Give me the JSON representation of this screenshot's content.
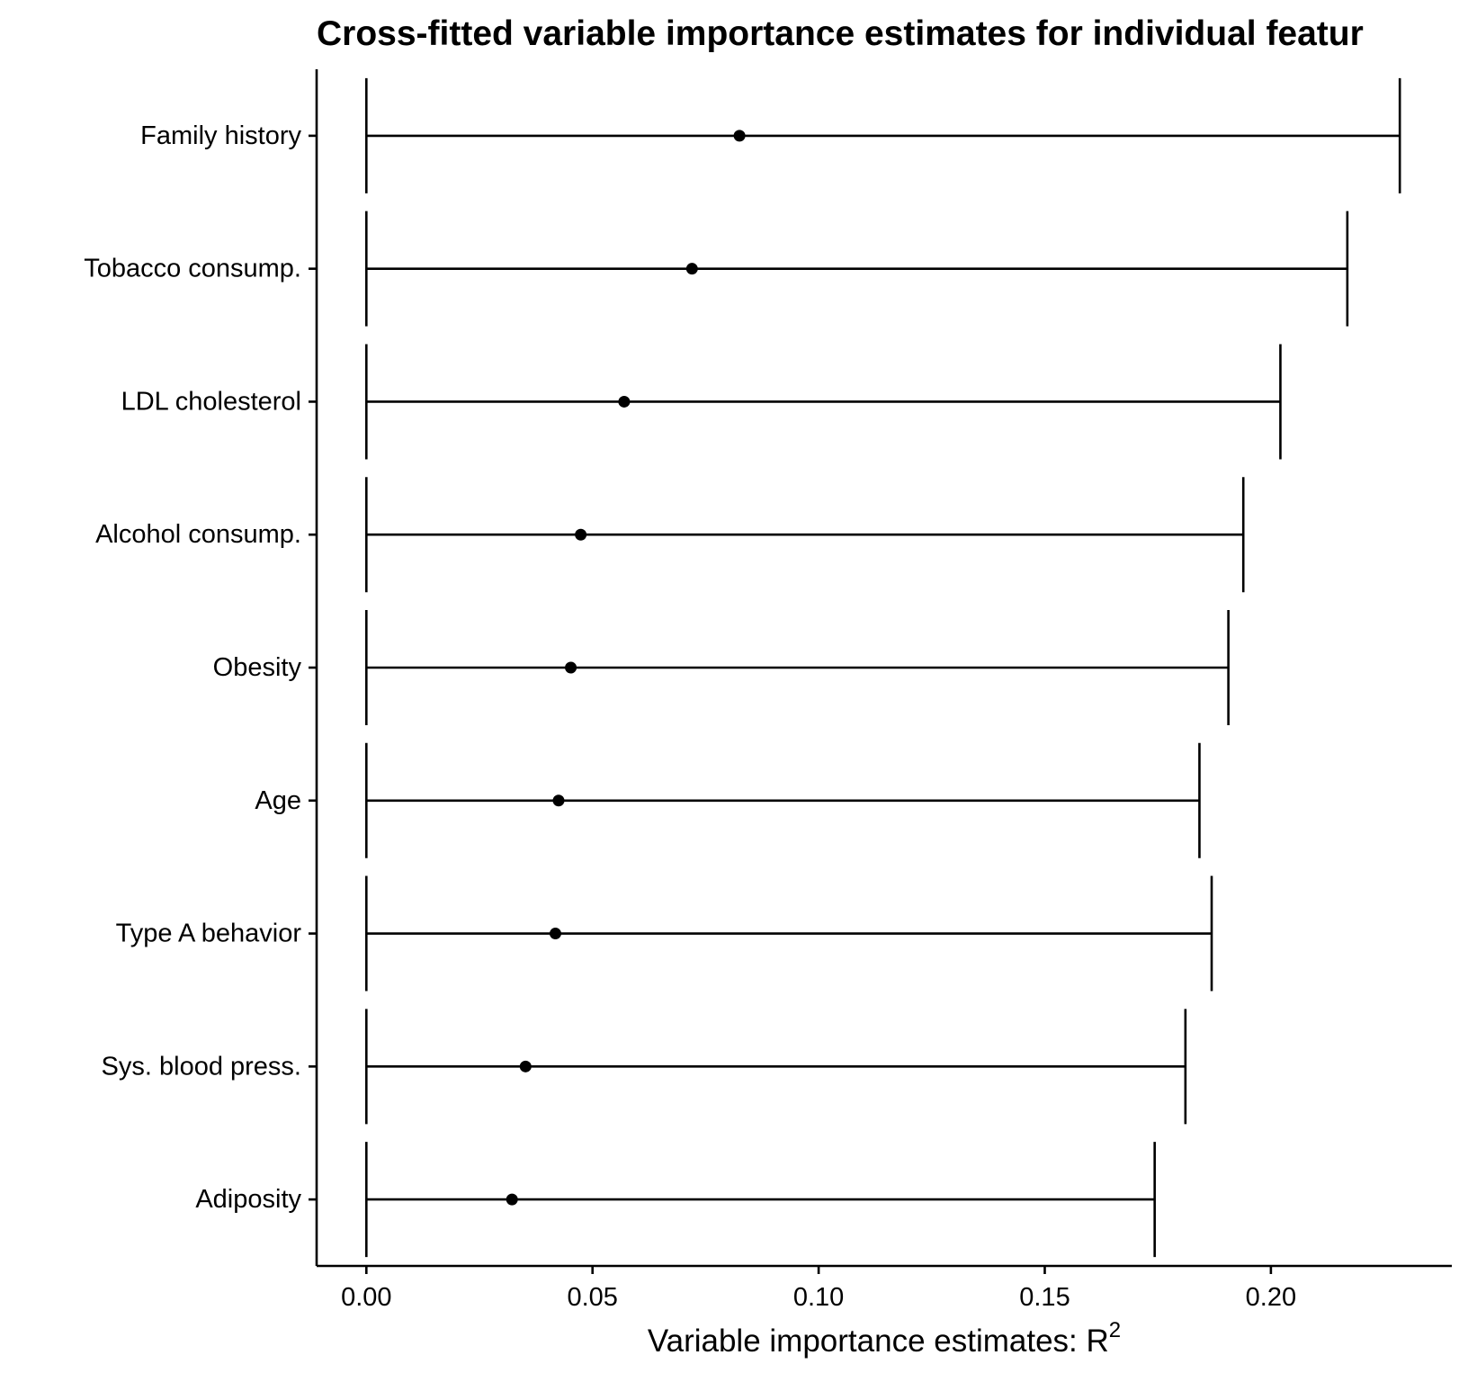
{
  "chart_data": {
    "type": "scatter",
    "title": "Cross-fitted variable importance estimates for individual featur",
    "xlabel": "Variable importance estimates: R",
    "xlabel_superscript": "2",
    "ylabel": "",
    "xlim": [
      -0.011,
      0.24
    ],
    "xticks": [
      "0.00",
      "0.05",
      "0.10",
      "0.15",
      "0.20"
    ],
    "grid": false,
    "legend": "none",
    "features": [
      {
        "label": "Family history",
        "estimate": 0.0825,
        "ci_low": 0.0,
        "ci_high": 0.2285
      },
      {
        "label": "Tobacco consump.",
        "estimate": 0.072,
        "ci_low": 0.0,
        "ci_high": 0.2169
      },
      {
        "label": "LDL cholesterol",
        "estimate": 0.057,
        "ci_low": 0.0,
        "ci_high": 0.2021
      },
      {
        "label": "Alcohol consump.",
        "estimate": 0.0474,
        "ci_low": 0.0,
        "ci_high": 0.1939
      },
      {
        "label": "Obesity",
        "estimate": 0.0452,
        "ci_low": 0.0,
        "ci_high": 0.1906
      },
      {
        "label": "Age",
        "estimate": 0.0425,
        "ci_low": 0.0,
        "ci_high": 0.1842
      },
      {
        "label": "Type A behavior",
        "estimate": 0.0418,
        "ci_low": 0.0,
        "ci_high": 0.1869
      },
      {
        "label": "Sys. blood press.",
        "estimate": 0.0352,
        "ci_low": 0.0,
        "ci_high": 0.1811
      },
      {
        "label": "Adiposity",
        "estimate": 0.0322,
        "ci_low": 0.0,
        "ci_high": 0.1743
      }
    ]
  }
}
